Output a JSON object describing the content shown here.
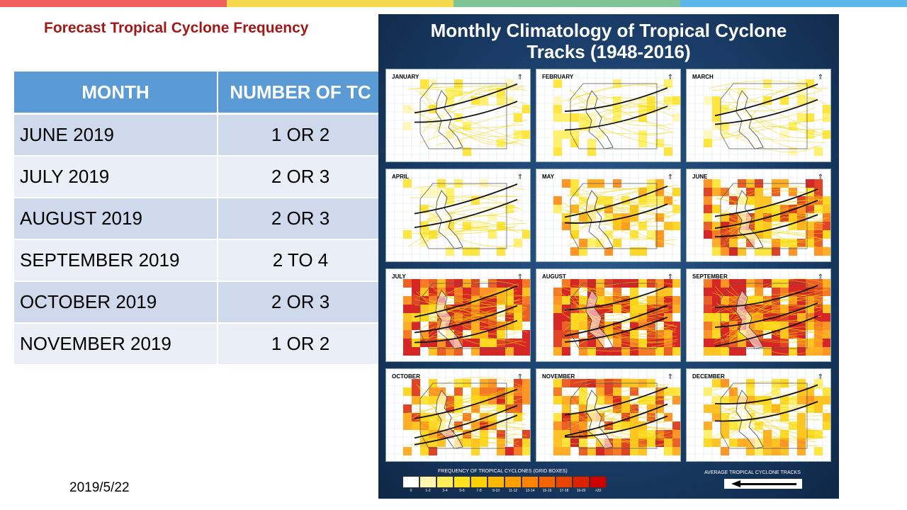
{
  "colors": {
    "top_bar": [
      "#f06060",
      "#f5d84f",
      "#7fc497",
      "#5bb7e8"
    ],
    "heading": "#a01818",
    "table_header": "#5b9bd5",
    "row_dark": "#cfd9ec",
    "row_light": "#e9eef7"
  },
  "heading": "Forecast Tropical Cyclone Frequency",
  "table": {
    "columns": [
      "MONTH",
      "NUMBER OF TC"
    ],
    "rows": [
      {
        "month": "JUNE 2019",
        "count": "1 OR 2"
      },
      {
        "month": "JULY 2019",
        "count": "2 OR 3"
      },
      {
        "month": "AUGUST 2019",
        "count": "2 OR 3"
      },
      {
        "month": "SEPTEMBER 2019",
        "count": "2 TO 4"
      },
      {
        "month": "OCTOBER 2019",
        "count": "2 OR 3"
      },
      {
        "month": "NOVEMBER 2019",
        "count": "1 OR 2"
      }
    ]
  },
  "date": "2019/5/22",
  "figure": {
    "title_line1": "Monthly Climatology of Tropical Cyclone",
    "title_line2": "Tracks (1948-2016)",
    "months": [
      {
        "name": "JANUARY",
        "intensity": 1
      },
      {
        "name": "FEBRUARY",
        "intensity": 1
      },
      {
        "name": "MARCH",
        "intensity": 1
      },
      {
        "name": "APRIL",
        "intensity": 1
      },
      {
        "name": "MAY",
        "intensity": 2
      },
      {
        "name": "JUNE",
        "intensity": 3
      },
      {
        "name": "JULY",
        "intensity": 4
      },
      {
        "name": "AUGUST",
        "intensity": 4
      },
      {
        "name": "SEPTEMBER",
        "intensity": 4
      },
      {
        "name": "OCTOBER",
        "intensity": 3
      },
      {
        "name": "NOVEMBER",
        "intensity": 3
      },
      {
        "name": "DECEMBER",
        "intensity": 2
      }
    ],
    "legend_title": "FREQUENCY OF TROPICAL CYCLONES (GRID BOXES)",
    "legend_labels": [
      "0",
      "1-2",
      "3-4",
      "5-6",
      "7-8",
      "9-10",
      "11-12",
      "13-14",
      "15-16",
      "17-18",
      "19-20",
      ">20"
    ],
    "legend_colors": [
      "#ffffff",
      "#fff6b0",
      "#ffee55",
      "#ffe11f",
      "#ffd000",
      "#ffb800",
      "#ffa000",
      "#ff8200",
      "#f46400",
      "#e84400",
      "#dc2200",
      "#d00000"
    ],
    "avg_tracks_label": "AVERAGE TROPICAL CYCLONE TRACKS"
  }
}
